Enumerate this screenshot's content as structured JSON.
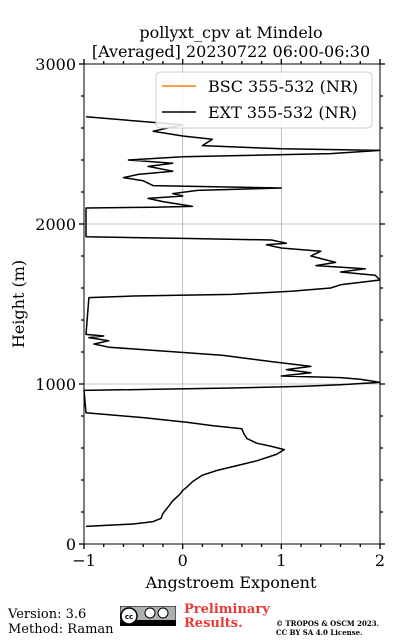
{
  "chart_data": {
    "type": "line",
    "title": "pollyxt_cpv at Mindelo",
    "subtitle": "[Averaged] 20230722 06:00-06:30",
    "xlabel": "Angstroem Exponent",
    "ylabel": "Height (m)",
    "xlim": [
      -1,
      2
    ],
    "ylim": [
      0,
      3000
    ],
    "xticks": [
      "−1",
      "0",
      "1",
      "2"
    ],
    "yticks": [
      "0",
      "1000",
      "2000",
      "3000"
    ],
    "grid": true,
    "legend_position": "upper-right",
    "series": [
      {
        "name": "BSC 355-532 (NR)",
        "color": "#ff7f0e",
        "points": []
      },
      {
        "name": "EXT 355-532 (NR)",
        "color": "#000000",
        "points": [
          [
            -0.98,
            110
          ],
          [
            -0.5,
            125
          ],
          [
            -0.3,
            140
          ],
          [
            -0.22,
            160
          ],
          [
            -0.2,
            190
          ],
          [
            -0.15,
            230
          ],
          [
            -0.1,
            270
          ],
          [
            -0.03,
            310
          ],
          [
            0.0,
            335
          ],
          [
            0.05,
            360
          ],
          [
            0.1,
            390
          ],
          [
            0.2,
            430
          ],
          [
            0.35,
            460
          ],
          [
            0.55,
            490
          ],
          [
            0.75,
            520
          ],
          [
            0.95,
            560
          ],
          [
            1.03,
            590
          ],
          [
            0.9,
            610
          ],
          [
            0.75,
            630
          ],
          [
            0.65,
            660
          ],
          [
            0.62,
            690
          ],
          [
            0.6,
            720
          ],
          [
            0.3,
            740
          ],
          [
            0.05,
            760
          ],
          [
            -0.4,
            790
          ],
          [
            -0.98,
            820
          ],
          [
            -1.0,
            960
          ],
          [
            0.5,
            975
          ],
          [
            1.2,
            985
          ],
          [
            1.6,
            995
          ],
          [
            2.0,
            1010
          ],
          [
            1.8,
            1030
          ],
          [
            1.6,
            1040
          ],
          [
            1.0,
            1050
          ],
          [
            1.3,
            1070
          ],
          [
            1.05,
            1090
          ],
          [
            1.3,
            1110
          ],
          [
            0.9,
            1140
          ],
          [
            0.4,
            1180
          ],
          [
            -0.75,
            1230
          ],
          [
            -0.9,
            1250
          ],
          [
            -0.75,
            1270
          ],
          [
            -0.95,
            1290
          ],
          [
            -0.8,
            1300
          ],
          [
            -0.98,
            1310
          ],
          [
            -0.95,
            1540
          ],
          [
            -0.5,
            1550
          ],
          [
            0.5,
            1560
          ],
          [
            1.1,
            1580
          ],
          [
            1.5,
            1600
          ],
          [
            1.6,
            1620
          ],
          [
            2.0,
            1650
          ],
          [
            1.95,
            1680
          ],
          [
            1.6,
            1700
          ],
          [
            1.85,
            1720
          ],
          [
            1.35,
            1740
          ],
          [
            1.55,
            1760
          ],
          [
            1.3,
            1800
          ],
          [
            1.4,
            1830
          ],
          [
            1.0,
            1850
          ],
          [
            0.85,
            1870
          ],
          [
            1.05,
            1880
          ],
          [
            0.9,
            1900
          ],
          [
            0.0,
            1910
          ],
          [
            -0.98,
            1920
          ],
          [
            -0.98,
            2100
          ],
          [
            -0.3,
            2105
          ],
          [
            0.1,
            2110
          ],
          [
            -0.2,
            2140
          ],
          [
            -0.35,
            2160
          ],
          [
            0.0,
            2175
          ],
          [
            -0.1,
            2190
          ],
          [
            0.15,
            2210
          ],
          [
            1.0,
            2225
          ],
          [
            -0.3,
            2240
          ],
          [
            -0.4,
            2270
          ],
          [
            -0.6,
            2290
          ],
          [
            -0.45,
            2310
          ],
          [
            -0.1,
            2330
          ],
          [
            -0.35,
            2360
          ],
          [
            -0.1,
            2380
          ],
          [
            -0.55,
            2400
          ],
          [
            0.0,
            2420
          ],
          [
            1.5,
            2440
          ],
          [
            2.0,
            2460
          ],
          [
            1.0,
            2470
          ],
          [
            0.2,
            2490
          ],
          [
            0.3,
            2530
          ],
          [
            0.0,
            2550
          ],
          [
            -0.3,
            2580
          ],
          [
            0.0,
            2620
          ],
          [
            -0.98,
            2670
          ]
        ]
      }
    ]
  },
  "footer": {
    "version": "Version: 3.6",
    "method": "Method: Raman",
    "preliminary_line1": "Preliminary",
    "preliminary_line2": "Results.",
    "copyright_line1": "© TROPOS & OSCM 2023.",
    "copyright_line2": "CC BY SA 4.0 License."
  }
}
